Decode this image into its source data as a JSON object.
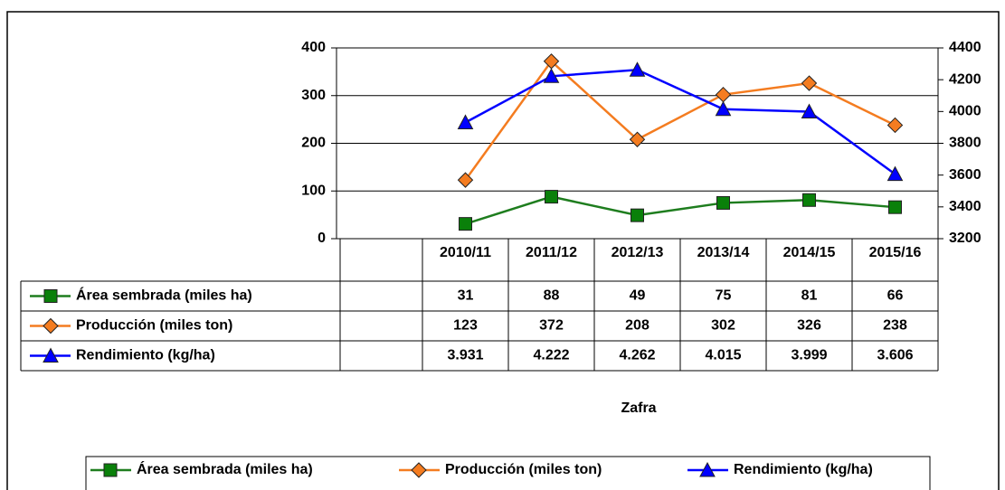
{
  "chart_data": {
    "type": "line",
    "categories": [
      null,
      "2010/11",
      "2011/12",
      "2012/13",
      "2013/14",
      "2014/15",
      "2015/16"
    ],
    "series": [
      {
        "name": "Área sembrada (miles ha)",
        "color": "#1e7d1e",
        "marker": "square",
        "marker_color": "#0a800a",
        "values": [
          null,
          31,
          88,
          49,
          75,
          81,
          66
        ]
      },
      {
        "name": "Producción (miles ton)",
        "color": "#f47c20",
        "marker": "diamond",
        "marker_color": "#f47c20",
        "values": [
          null,
          123,
          372,
          208,
          302,
          326,
          238
        ]
      },
      {
        "name": "Rendimiento (kg/ha)",
        "color": "#0000ff",
        "marker": "triangle",
        "marker_color": "#0000ff",
        "axis": "y2",
        "values": [
          null,
          3931,
          4222,
          4262,
          4015,
          3999,
          3606
        ],
        "value_labels": [
          null,
          "3.931",
          "4.222",
          "4.262",
          "4.015",
          "3.999",
          "3.606"
        ]
      }
    ],
    "x_label": "Zafra",
    "ylim": [
      0,
      400
    ],
    "yticks": [
      0,
      100,
      200,
      300,
      400
    ],
    "y2lim": [
      3200,
      4400
    ],
    "y2ticks": [
      3200,
      3400,
      3600,
      3800,
      4000,
      4200,
      4400
    ],
    "grid": true,
    "legend": "bottom"
  }
}
